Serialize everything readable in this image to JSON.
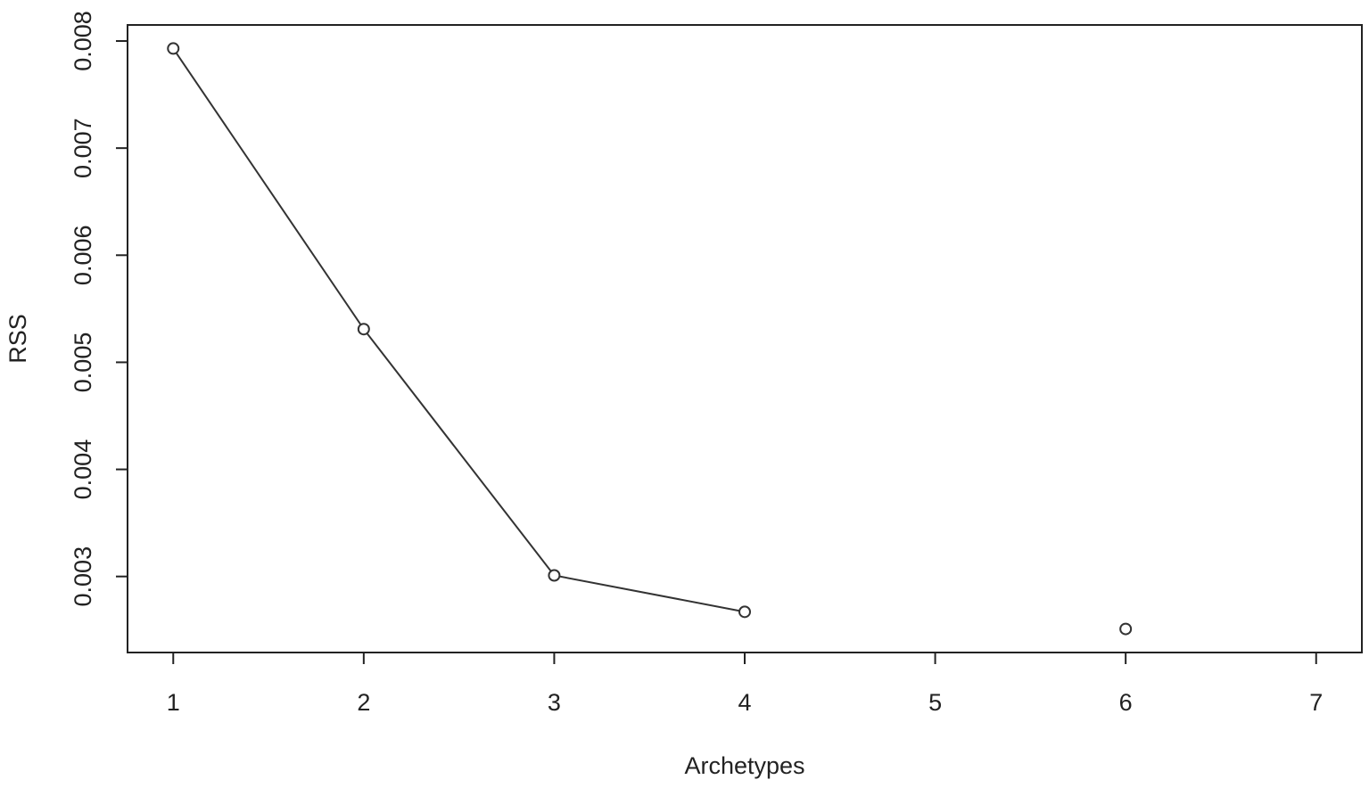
{
  "chart_data": {
    "type": "line",
    "x_label": "Archetypes",
    "y_label": "RSS",
    "x": [
      1,
      2,
      3,
      4,
      5,
      6,
      7
    ],
    "series": [
      {
        "name": "RSS",
        "color": "#333333",
        "values": [
          0.00793,
          0.00531,
          0.00301,
          0.00267,
          null,
          0.00251,
          null
        ]
      }
    ],
    "xlim": [
      0.76,
      7.24
    ],
    "ylim": [
      0.00229,
      0.00815
    ],
    "xticks": [
      1,
      2,
      3,
      4,
      5,
      6,
      7
    ],
    "yticks": [
      0.003,
      0.004,
      0.005,
      0.006,
      0.007,
      0.008
    ],
    "grid": false,
    "markers": true
  }
}
